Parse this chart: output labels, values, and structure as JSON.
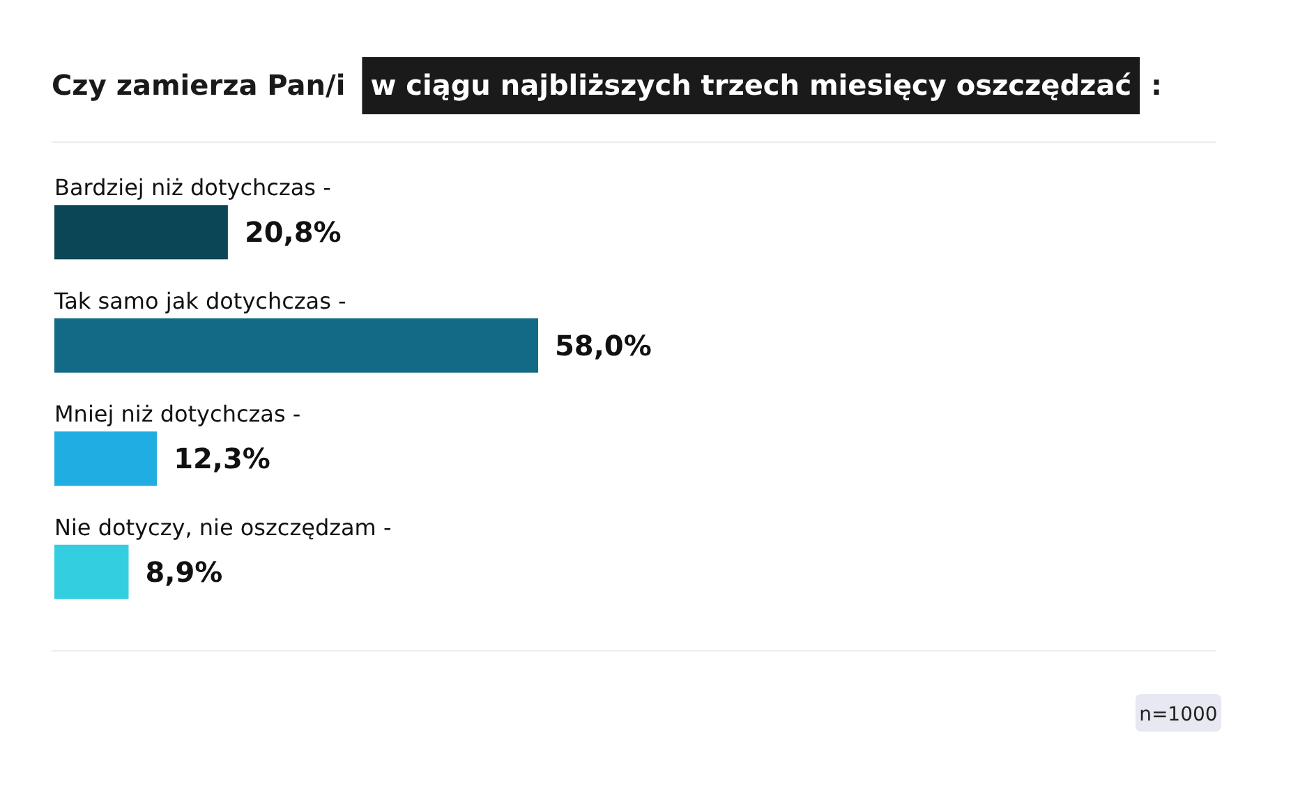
{
  "chart_data": {
    "type": "bar",
    "orientation": "horizontal",
    "title": "Czy zamierza Pan/i w ciągu najbliższych trzech miesięcy oszczędzać :",
    "categories": [
      "Bardziej niż dotychczas -",
      "Tak samo jak dotychczas -",
      "Mniej niż dotychczas -",
      "Nie dotyczy, nie oszczędzam -"
    ],
    "values": [
      20.8,
      58.0,
      12.3,
      8.9
    ],
    "colors": [
      "#0a4656",
      "#126a86",
      "#20ade1",
      "#33cee0"
    ],
    "value_labels": [
      "20,8%",
      "58,0%",
      "12,3%",
      "8,9%"
    ],
    "annotations": [
      "n=1000"
    ]
  }
}
